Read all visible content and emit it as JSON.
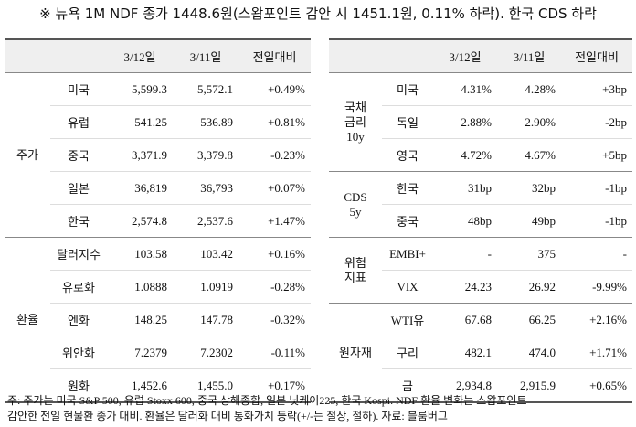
{
  "title": "※ 뉴욕 1M NDF 종가 1448.6원(스왑포인트 감안 시 1451.1원, 0.11% 하락). 한국 CDS 하락",
  "left_table": {
    "headers": [
      "3/12일",
      "3/11일",
      "전일대비"
    ],
    "groups": [
      {
        "label": [
          "주가"
        ],
        "rows": [
          [
            "미국",
            "5,599.3",
            "5,572.1",
            "+0.49%"
          ],
          [
            "유럽",
            "541.25",
            "536.89",
            "+0.81%"
          ],
          [
            "중국",
            "3,371.9",
            "3,379.8",
            "-0.23%"
          ],
          [
            "일본",
            "36,819",
            "36,793",
            "+0.07%"
          ],
          [
            "한국",
            "2,574.8",
            "2,537.6",
            "+1.47%"
          ]
        ]
      },
      {
        "label": [
          "환율"
        ],
        "rows": [
          [
            "달러지수",
            "103.58",
            "103.42",
            "+0.16%"
          ],
          [
            "유로화",
            "1.0888",
            "1.0919",
            "-0.28%"
          ],
          [
            "엔화",
            "148.25",
            "147.78",
            "-0.32%"
          ],
          [
            "위안화",
            "7.2379",
            "7.2302",
            "-0.11%"
          ],
          [
            "원화",
            "1,452.6",
            "1,455.0",
            "+0.17%"
          ]
        ]
      }
    ]
  },
  "right_table": {
    "headers": [
      "3/12일",
      "3/11일",
      "전일대비"
    ],
    "groups": [
      {
        "label": [
          "국채",
          "금리",
          "10y"
        ],
        "rows": [
          [
            "미국",
            "4.31%",
            "4.28%",
            "+3bp"
          ],
          [
            "독일",
            "2.88%",
            "2.90%",
            "-2bp"
          ],
          [
            "영국",
            "4.72%",
            "4.67%",
            "+5bp"
          ]
        ]
      },
      {
        "label": [
          "CDS",
          "5y"
        ],
        "rows": [
          [
            "한국",
            "31bp",
            "32bp",
            "-1bp"
          ],
          [
            "중국",
            "48bp",
            "49bp",
            "-1bp"
          ]
        ]
      },
      {
        "label": [
          "위험",
          "지표"
        ],
        "rows": [
          [
            "EMBI+",
            "-",
            "375",
            "-"
          ],
          [
            "VIX",
            "24.23",
            "26.92",
            "-9.99%"
          ]
        ]
      },
      {
        "label": [
          "원자재"
        ],
        "rows": [
          [
            "WTI유",
            "67.68",
            "66.25",
            "+2.16%"
          ],
          [
            "구리",
            "482.1",
            "474.0",
            "+1.71%"
          ],
          [
            "금",
            "2,934.8",
            "2,915.9",
            "+0.65%"
          ]
        ]
      }
    ]
  },
  "footnote": [
    "주: 주가는 미국 S&P 500, 유럽 Stoxx 600, 중국 상해종합, 일본 닛케이225, 한국 Kospi. NDF 환율 변화는 스왑포인트",
    "감안한 전일 현물환 종가 대비. 환율은 달러화 대비 통화가치 등락(+/-는 절상, 절하). 자료: 블룸버그"
  ]
}
